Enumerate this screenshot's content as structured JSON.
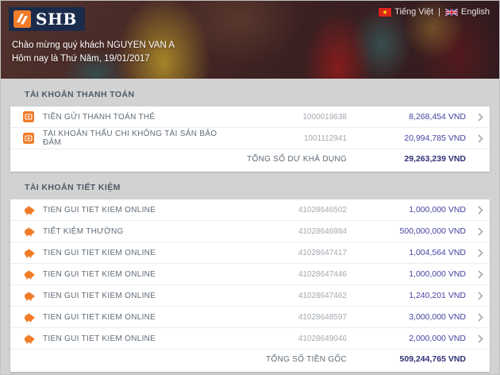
{
  "header": {
    "logo_text": "SHB",
    "greeting_line1": "Chào mừng quý khách NGUYEN VAN A",
    "greeting_line2": "Hôm nay là Thứ Năm, 19/01/2017",
    "lang_vi": "Tiếng Việt",
    "lang_separator": "|",
    "lang_en": "English"
  },
  "colors": {
    "accent_orange": "#F07B28",
    "logo_navy": "#1A2B4C",
    "amount_purple": "#4443A1",
    "total_purple": "#303079"
  },
  "sections": [
    {
      "title": "TÀI KHOẢN THANH TOÁN",
      "icon": "card-icon",
      "rows": [
        {
          "label": "TIỀN GỬI THANH TOÁN THẺ",
          "account": "1000019638",
          "amount": "8,268,454 VND"
        },
        {
          "label": "TÀI KHOẢN THẤU CHI KHÔNG TÀI SẢN BẢO ĐẢM",
          "account": "1001112941",
          "amount": "20,994,785 VND"
        }
      ],
      "total_label": "TỔNG SỐ DƯ KHẢ DỤNG",
      "total_amount": "29,263,239 VND"
    },
    {
      "title": "TÀI KHOẢN TIẾT KIỆM",
      "icon": "piggy-bank-icon",
      "rows": [
        {
          "label": "TIEN GUI TIET KIEM ONLINE",
          "account": "41028646502",
          "amount": "1,000,000 VND"
        },
        {
          "label": "TIẾT KIỆM THƯỜNG",
          "account": "41028646984",
          "amount": "500,000,000 VND"
        },
        {
          "label": "TIEN GUI TIET KIEM ONLINE",
          "account": "41028647417",
          "amount": "1,004,564 VND"
        },
        {
          "label": "TIEN GUI TIET KIEM ONLINE",
          "account": "41028647446",
          "amount": "1,000,000 VND"
        },
        {
          "label": "TIEN GUI TIET KIEM ONLINE",
          "account": "41028647462",
          "amount": "1,240,201 VND"
        },
        {
          "label": "TIEN GUI TIET KIEM ONLINE",
          "account": "41028648597",
          "amount": "3,000,000 VND"
        },
        {
          "label": "TIEN GUI TIET KIEM ONLINE",
          "account": "41028649046",
          "amount": "2,000,000 VND"
        }
      ],
      "total_label": "TỔNG SỐ TIỀN GỐC",
      "total_amount": "509,244,765 VND"
    }
  ]
}
